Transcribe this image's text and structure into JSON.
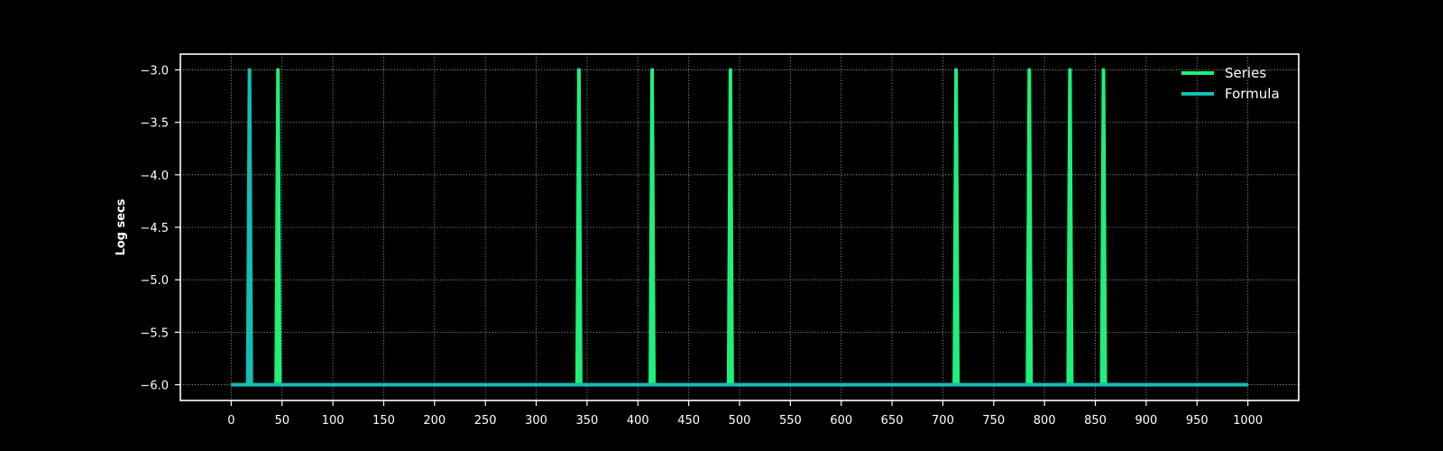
{
  "chart_data": {
    "type": "line",
    "title": "",
    "xlabel": "",
    "ylabel": "Log secs",
    "xlim": [
      -50,
      1050
    ],
    "ylim": [
      -6.15,
      -2.85
    ],
    "xticks": [
      0,
      50,
      100,
      150,
      200,
      250,
      300,
      350,
      400,
      450,
      500,
      550,
      600,
      650,
      700,
      750,
      800,
      850,
      900,
      950,
      1000
    ],
    "yticks": [
      -3.0,
      -3.5,
      -4.0,
      -4.5,
      -5.0,
      -5.5,
      -6.0
    ],
    "ytick_labels": [
      "−3.0",
      "−3.5",
      "−4.0",
      "−4.5",
      "−5.0",
      "−5.5",
      "−6.0"
    ],
    "grid": true,
    "legend_position": "top-right",
    "x_range": [
      0,
      1000
    ],
    "baseline": -6.0,
    "spike_value": -3.0,
    "series": [
      {
        "name": "Series",
        "color": "#1ef07a",
        "spikes": [
          46,
          342,
          414,
          491,
          713,
          785,
          825,
          858
        ]
      },
      {
        "name": "Formula",
        "color": "#13bfb3",
        "spikes": [
          18
        ]
      }
    ]
  }
}
